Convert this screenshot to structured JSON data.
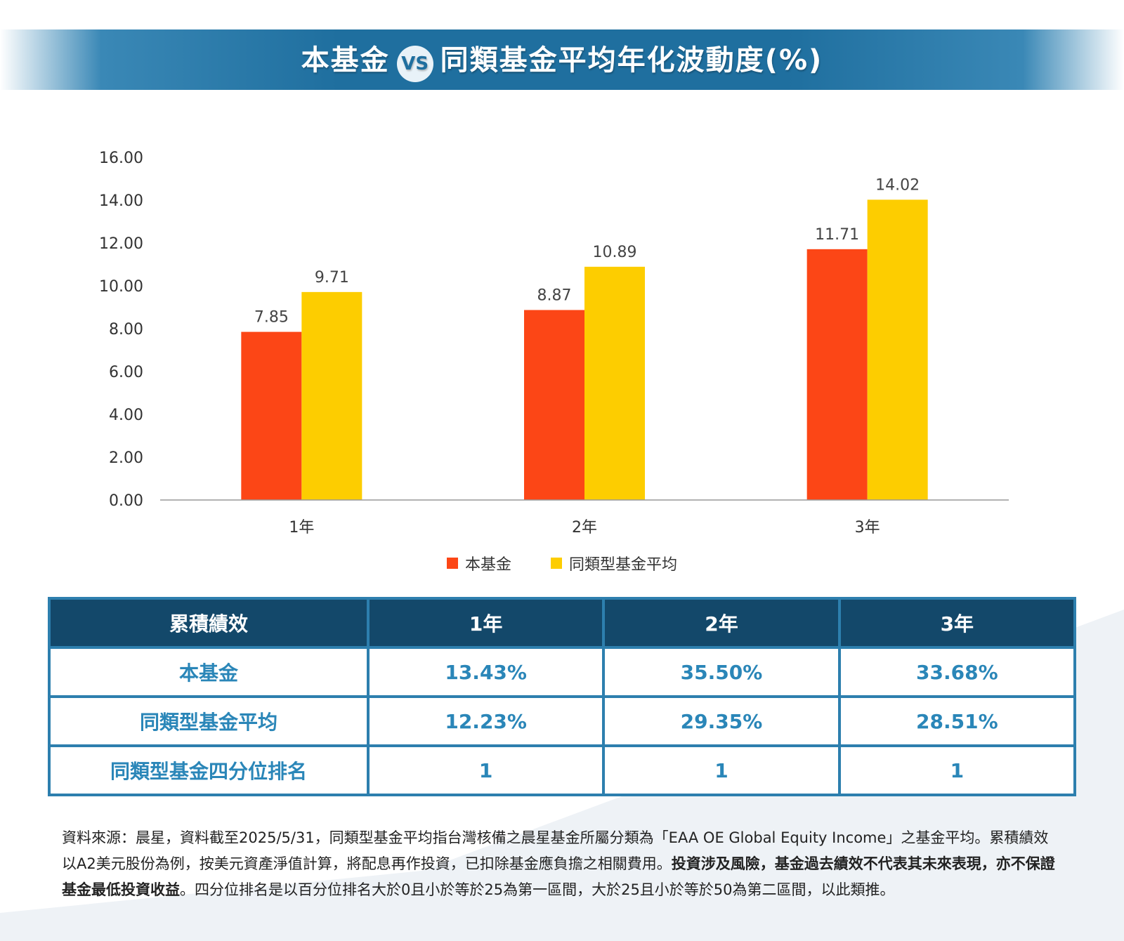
{
  "header": {
    "title_left": "本基金",
    "vs": "VS",
    "title_right": "同類基金平均年化波動度(%)"
  },
  "colors": {
    "fund": "#fc4616",
    "peer": "#fdcd00",
    "table_header": "#13486a",
    "table_border": "#2d7fae",
    "table_text": "#2a86b8"
  },
  "chart_data": {
    "type": "bar",
    "categories": [
      "1年",
      "2年",
      "3年"
    ],
    "series": [
      {
        "name": "本基金",
        "values": [
          7.85,
          8.87,
          11.71
        ]
      },
      {
        "name": "同類型基金平均",
        "values": [
          9.71,
          10.89,
          14.02
        ]
      }
    ],
    "data_labels": [
      [
        "7.85",
        "8.87",
        "11.71"
      ],
      [
        "9.71",
        "10.89",
        "14.02"
      ]
    ],
    "ylim": [
      0,
      16
    ],
    "yticks": [
      "0.00",
      "2.00",
      "4.00",
      "6.00",
      "8.00",
      "10.00",
      "12.00",
      "14.00",
      "16.00"
    ],
    "legend_position": "bottom-center",
    "grid": false
  },
  "legend": [
    {
      "label": "本基金"
    },
    {
      "label": "同類型基金平均"
    }
  ],
  "table": {
    "headers": [
      "累積績效",
      "1年",
      "2年",
      "3年"
    ],
    "rows": [
      {
        "label": "本基金",
        "cells": [
          "13.43%",
          "35.50%",
          "33.68%"
        ]
      },
      {
        "label": "同類型基金平均",
        "cells": [
          "12.23%",
          "29.35%",
          "28.51%"
        ]
      },
      {
        "label": "同類型基金四分位排名",
        "cells": [
          "1",
          "1",
          "1"
        ]
      }
    ]
  },
  "footnote": {
    "part1": "資料來源：晨星，資料截至2025/5/31，同類型基金平均指台灣核備之晨星基金所屬分類為「EAA OE Global Equity Income」之基金平均。累積績效以A2美元股份為例，按美元資產淨值計算，將配息再作投資，已扣除基金應負擔之相關費用。",
    "bold": "投資涉及風險，基金過去績效不代表其未來表現，亦不保證基金最低投資收益",
    "part2": "。四分位排名是以百分位排名大於0且小於等於25為第一區間，大於25且小於等於50為第二區間，以此類推。"
  }
}
